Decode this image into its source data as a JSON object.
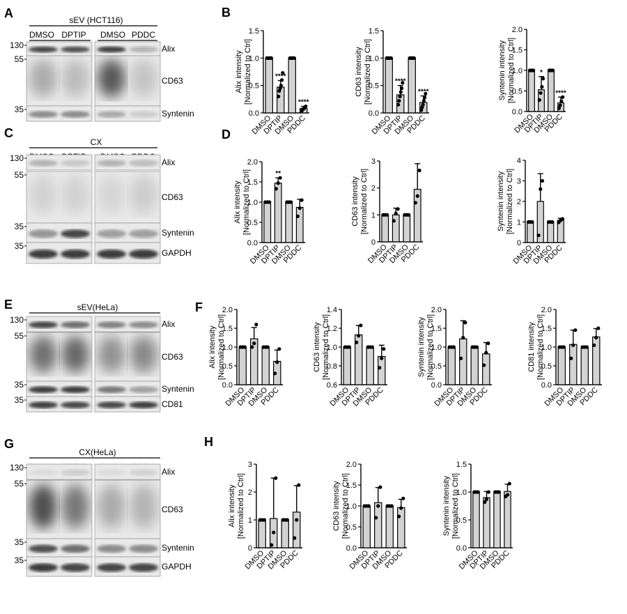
{
  "panel_letters": [
    "A",
    "B",
    "C",
    "D",
    "E",
    "F",
    "G",
    "H"
  ],
  "blots": [
    {
      "letter": "A",
      "title": "sEV (HCT116)",
      "lanes": [
        "DMSO",
        "DPTIP",
        "DMSO",
        "PDDC"
      ],
      "rows": [
        {
          "mw": "130",
          "label": "Alix"
        },
        {
          "mw": "55",
          "label": "CD63"
        },
        {
          "mw": "35",
          "label": "Syntenin"
        }
      ]
    },
    {
      "letter": "C",
      "title": "CX",
      "lanes": [
        "DMSO",
        "DPTIP",
        "DMSO",
        "PDDC"
      ],
      "rows": [
        {
          "mw": "130",
          "label": "Alix"
        },
        {
          "mw": "55",
          "label": "CD63"
        },
        {
          "mw": "35",
          "label": "Syntenin"
        },
        {
          "mw": "35",
          "label": "GAPDH"
        }
      ]
    },
    {
      "letter": "E",
      "title": "sEV(HeLa)",
      "lanes": [
        "DMSO",
        "DPTIP",
        "DMSO",
        "PDDC"
      ],
      "rows": [
        {
          "mw": "130",
          "label": "Alix"
        },
        {
          "mw": "55",
          "label": "CD63"
        },
        {
          "mw": "35",
          "label": "Syntenin"
        },
        {
          "mw": "35",
          "label": "CD81"
        }
      ]
    },
    {
      "letter": "G",
      "title": "CX(HeLa)",
      "lanes": [
        "DMSO",
        "DPTIP",
        "DMSO",
        "PDDC"
      ],
      "rows": [
        {
          "mw": "130",
          "label": "Alix"
        },
        {
          "mw": "55",
          "label": "CD63"
        },
        {
          "mw": "35",
          "label": "Syntenin"
        },
        {
          "mw": "35",
          "label": "GAPDH"
        }
      ]
    }
  ],
  "chart_data": [
    {
      "panel": "B",
      "type": "bar",
      "categories": [
        "DMSO",
        "DPTIP",
        "DMSO",
        "PDDC"
      ],
      "ylabel": [
        "Alix intensity",
        "[Normalized to Ctrl]"
      ],
      "ylim": [
        0,
        1.5
      ],
      "yticks": [
        "0.0",
        "0.5",
        "1.0",
        "1.5"
      ],
      "values": [
        1.0,
        0.47,
        1.0,
        0.08
      ],
      "errors": [
        0.01,
        0.12,
        0.01,
        0.04
      ],
      "points": [
        [
          1,
          1,
          1,
          1,
          1,
          1
        ],
        [
          0.3,
          0.4,
          0.45,
          0.5,
          0.6,
          0.73
        ],
        [
          1,
          1,
          1,
          1,
          1,
          1
        ],
        [
          0.03,
          0.05,
          0.07,
          0.08,
          0.1,
          0.12
        ]
      ],
      "annotations": [
        "",
        "****",
        "",
        "****"
      ]
    },
    {
      "panel": "B",
      "type": "bar",
      "categories": [
        "DMSO",
        "DPTIP",
        "DMSO",
        "PDDC"
      ],
      "ylabel": [
        "CD63 intensity",
        "[Normalized to Ctrl]"
      ],
      "ylim": [
        0,
        1.5
      ],
      "yticks": [
        "0.0",
        "0.5",
        "1.0",
        "1.5"
      ],
      "values": [
        1.0,
        0.33,
        1.0,
        0.19
      ],
      "errors": [
        0.01,
        0.17,
        0.01,
        0.12
      ],
      "points": [
        [
          1,
          1,
          1,
          1,
          1,
          1
        ],
        [
          0.15,
          0.22,
          0.3,
          0.38,
          0.45,
          0.55
        ],
        [
          1,
          1,
          1,
          1,
          1,
          1
        ],
        [
          0.05,
          0.1,
          0.15,
          0.22,
          0.28,
          0.35
        ]
      ],
      "annotations": [
        "",
        "****",
        "",
        "****"
      ]
    },
    {
      "panel": "B",
      "type": "bar",
      "categories": [
        "DMSO",
        "DPTIP",
        "DMSO",
        "PDDC"
      ],
      "ylabel": [
        "Syntenin intensity",
        "[Normalized to Ctrl]"
      ],
      "ylim": [
        0,
        2.0
      ],
      "yticks": [
        "0.0",
        "0.5",
        "1.0",
        "1.5",
        "2.0"
      ],
      "values": [
        1.0,
        0.53,
        1.0,
        0.21
      ],
      "errors": [
        0.01,
        0.32,
        0.01,
        0.14
      ],
      "points": [
        [
          1,
          1,
          1,
          1
        ],
        [
          0.28,
          0.45,
          0.6,
          0.8
        ],
        [
          1,
          1,
          1,
          1
        ],
        [
          0.08,
          0.15,
          0.25,
          0.35
        ]
      ],
      "annotations": [
        "",
        "*",
        "",
        "****"
      ]
    },
    {
      "panel": "D",
      "type": "bar",
      "categories": [
        "DMSO",
        "DPTIP",
        "DMSO",
        "PDDC"
      ],
      "ylabel": [
        "Alix intensity",
        "[Normalized to Ctrl]"
      ],
      "ylim": [
        0,
        2.0
      ],
      "yticks": [
        "0.0",
        "0.5",
        "1.0",
        "1.5",
        "2.0"
      ],
      "values": [
        1.0,
        1.47,
        1.0,
        0.87
      ],
      "errors": [
        0.01,
        0.13,
        0.01,
        0.2
      ],
      "points": [
        [
          1,
          1,
          1
        ],
        [
          1.33,
          1.47,
          1.6
        ],
        [
          1,
          1,
          1
        ],
        [
          0.65,
          0.85,
          1.05
        ]
      ],
      "annotations": [
        "",
        "**",
        "",
        ""
      ]
    },
    {
      "panel": "D",
      "type": "bar",
      "categories": [
        "DMSO",
        "DPTIP",
        "DMSO",
        "PDDC"
      ],
      "ylabel": [
        "CD63 intensity",
        "[Normalized to Ctrl]"
      ],
      "ylim": [
        0,
        3
      ],
      "yticks": [
        "0",
        "1",
        "2",
        "3"
      ],
      "values": [
        1.0,
        1.0,
        1.0,
        1.95
      ],
      "errors": [
        0.02,
        0.25,
        0.02,
        0.95
      ],
      "points": [
        [
          1,
          1,
          1
        ],
        [
          0.78,
          1.05,
          1.22
        ],
        [
          1,
          1,
          1
        ],
        [
          1.45,
          1.7,
          2.65
        ]
      ],
      "annotations": [
        "",
        "",
        "",
        ""
      ]
    },
    {
      "panel": "D",
      "type": "bar",
      "categories": [
        "DMSO",
        "DPTIP",
        "DMSO",
        "PDDC"
      ],
      "ylabel": [
        "Syntenin intensity",
        "[Normalized to Ctrl]"
      ],
      "ylim": [
        0,
        4
      ],
      "yticks": [
        "0",
        "1",
        "2",
        "3",
        "4"
      ],
      "values": [
        1.0,
        2.0,
        1.0,
        1.08
      ],
      "errors": [
        0.02,
        1.35,
        0.02,
        0.1
      ],
      "points": [
        [
          1,
          1,
          1
        ],
        [
          0.35,
          2.6,
          3.0
        ],
        [
          1,
          1,
          1
        ],
        [
          0.98,
          1.08,
          1.15
        ]
      ],
      "annotations": [
        "",
        "",
        "",
        ""
      ]
    },
    {
      "panel": "F",
      "type": "bar",
      "categories": [
        "DMSO",
        "DPTIP",
        "DMSO",
        "PDDC"
      ],
      "ylabel": [
        "Alix intensity",
        "[Normalized to Ctrl]"
      ],
      "ylim": [
        0,
        2.0
      ],
      "yticks": [
        "0.0",
        "0.5",
        "1.0",
        "1.5",
        "2.0"
      ],
      "values": [
        1.0,
        1.22,
        1.0,
        0.62
      ],
      "errors": [
        0.01,
        0.3,
        0.01,
        0.3
      ],
      "points": [
        [
          1,
          1,
          1
        ],
        [
          1.0,
          1.1,
          1.6
        ],
        [
          1,
          1,
          1
        ],
        [
          0.3,
          0.6,
          0.95
        ]
      ],
      "annotations": [
        "",
        "",
        "",
        ""
      ]
    },
    {
      "panel": "F",
      "type": "bar",
      "categories": [
        "DMSO",
        "DPTIP",
        "DMSO",
        "PDDC"
      ],
      "ylabel": [
        "CD63 intensity",
        "[Normalized to Ctrl]"
      ],
      "ylim": [
        0.6,
        1.4
      ],
      "yticks": [
        "0.6",
        "0.8",
        "1.0",
        "1.2",
        "1.4"
      ],
      "values": [
        1.0,
        1.13,
        1.0,
        0.9
      ],
      "errors": [
        0.005,
        0.1,
        0.005,
        0.12
      ],
      "points": [
        [
          1,
          1,
          1
        ],
        [
          1.05,
          1.12,
          1.23
        ],
        [
          1,
          1,
          1
        ],
        [
          0.78,
          0.88,
          0.98
        ]
      ],
      "annotations": [
        "",
        "",
        "",
        ""
      ]
    },
    {
      "panel": "F",
      "type": "bar",
      "categories": [
        "DMSO",
        "DPTIP",
        "DMSO",
        "PDDC"
      ],
      "ylabel": [
        "Syntenin intensity",
        "[Normalized to Ctrl]"
      ],
      "ylim": [
        0,
        2.0
      ],
      "yticks": [
        "0.0",
        "0.5",
        "1.0",
        "1.5",
        "2.0"
      ],
      "values": [
        1.0,
        1.22,
        1.0,
        0.82
      ],
      "errors": [
        0.01,
        0.48,
        0.01,
        0.3
      ],
      "points": [
        [
          1,
          1,
          1
        ],
        [
          0.7,
          1.25,
          1.65
        ],
        [
          1,
          1,
          1
        ],
        [
          0.52,
          0.85,
          1.1
        ]
      ],
      "annotations": [
        "",
        "",
        "",
        ""
      ]
    },
    {
      "panel": "F",
      "type": "bar",
      "categories": [
        "DMSO",
        "DPTIP",
        "DMSO",
        "PDDC"
      ],
      "ylabel": [
        "CD81 intensity",
        "[Normalized to Ctrl]"
      ],
      "ylim": [
        0,
        2.0
      ],
      "yticks": [
        "0.0",
        "0.5",
        "1.0",
        "1.5",
        "2.0"
      ],
      "values": [
        1.0,
        1.07,
        1.0,
        1.27
      ],
      "errors": [
        0.01,
        0.38,
        0.01,
        0.22
      ],
      "points": [
        [
          1,
          1,
          1
        ],
        [
          0.7,
          1.05,
          1.45
        ],
        [
          1,
          1,
          1
        ],
        [
          1.05,
          1.25,
          1.5
        ]
      ],
      "annotations": [
        "",
        "",
        "",
        ""
      ]
    },
    {
      "panel": "H",
      "type": "bar",
      "categories": [
        "DMSO",
        "DPTIP",
        "DMSO",
        "PDDC"
      ],
      "ylabel": [
        "Alix intensity",
        "[Normalized to Ctrl]"
      ],
      "ylim": [
        0,
        3
      ],
      "yticks": [
        "0",
        "1",
        "2",
        "3"
      ],
      "values": [
        1.0,
        1.05,
        1.0,
        1.28
      ],
      "errors": [
        0.01,
        1.45,
        0.01,
        0.95
      ],
      "points": [
        [
          1,
          1,
          1
        ],
        [
          0.1,
          0.55,
          2.5
        ],
        [
          1,
          1,
          1
        ],
        [
          0.35,
          1.0,
          2.25
        ]
      ],
      "annotations": [
        "",
        "",
        "",
        ""
      ]
    },
    {
      "panel": "H",
      "type": "bar",
      "categories": [
        "DMSO",
        "DPTIP",
        "DMSO",
        "PDDC"
      ],
      "ylabel": [
        "CD63 intensity",
        "[Normalized to Ctrl]"
      ],
      "ylim": [
        0,
        2.0
      ],
      "yticks": [
        "0.0",
        "0.5",
        "1.0",
        "1.5",
        "2.0"
      ],
      "values": [
        1.0,
        1.08,
        1.0,
        0.96
      ],
      "errors": [
        0.01,
        0.36,
        0.01,
        0.2
      ],
      "points": [
        [
          1,
          1,
          1
        ],
        [
          0.72,
          1.0,
          1.45
        ],
        [
          1,
          1,
          1
        ],
        [
          0.75,
          0.95,
          1.18
        ]
      ],
      "annotations": [
        "",
        "",
        "",
        ""
      ]
    },
    {
      "panel": "H",
      "type": "bar",
      "categories": [
        "DMSO",
        "DPTIP",
        "DMSO",
        "PDDC"
      ],
      "ylabel": [
        "Syntenin intensity",
        "[Normalized to Ctrl]"
      ],
      "ylim": [
        0,
        1.5
      ],
      "yticks": [
        "0.0",
        "0.5",
        "1.0",
        "1.5"
      ],
      "values": [
        1.0,
        0.9,
        1.0,
        1.01
      ],
      "errors": [
        0.01,
        0.11,
        0.01,
        0.13
      ],
      "points": [
        [
          1,
          1,
          1
        ],
        [
          0.82,
          0.87,
          1.0
        ],
        [
          1,
          1,
          1
        ],
        [
          0.92,
          0.95,
          1.15
        ]
      ],
      "annotations": [
        "",
        "",
        "",
        ""
      ]
    }
  ]
}
